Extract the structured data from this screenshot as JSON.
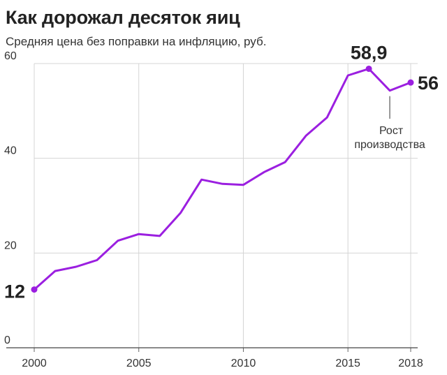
{
  "title": "Как дорожал десяток яиц",
  "subtitle": "Средняя цена без поправки на инфляцию, руб.",
  "chart_data": {
    "type": "line",
    "x": [
      2000,
      2001,
      2002,
      2003,
      2004,
      2005,
      2006,
      2007,
      2008,
      2009,
      2010,
      2011,
      2012,
      2013,
      2014,
      2015,
      2016,
      2017,
      2018
    ],
    "series": [
      {
        "color": "#9b1fe0",
        "values": [
          12.3,
          16.2,
          17.1,
          18.5,
          22.6,
          24.0,
          23.6,
          28.5,
          35.5,
          34.6,
          34.4,
          37.1,
          39.2,
          44.8,
          48.6,
          57.5,
          58.9,
          54.3,
          56.0
        ]
      }
    ],
    "xticks": [
      "2000",
      "2005",
      "2010",
      "2015",
      "2018"
    ],
    "xtick_values": [
      2000,
      2005,
      2010,
      2015,
      2018
    ],
    "yticks": [
      "0",
      "20",
      "40",
      "60"
    ],
    "ytick_values": [
      0,
      20,
      40,
      60
    ],
    "xlim": [
      2000,
      2018
    ],
    "ylim": [
      0,
      60
    ],
    "grid": true,
    "annotations": {
      "start_label": "12",
      "peak_label": "58,9",
      "end_label": "56",
      "note_line1": "Рост",
      "note_line2": "производства"
    }
  }
}
